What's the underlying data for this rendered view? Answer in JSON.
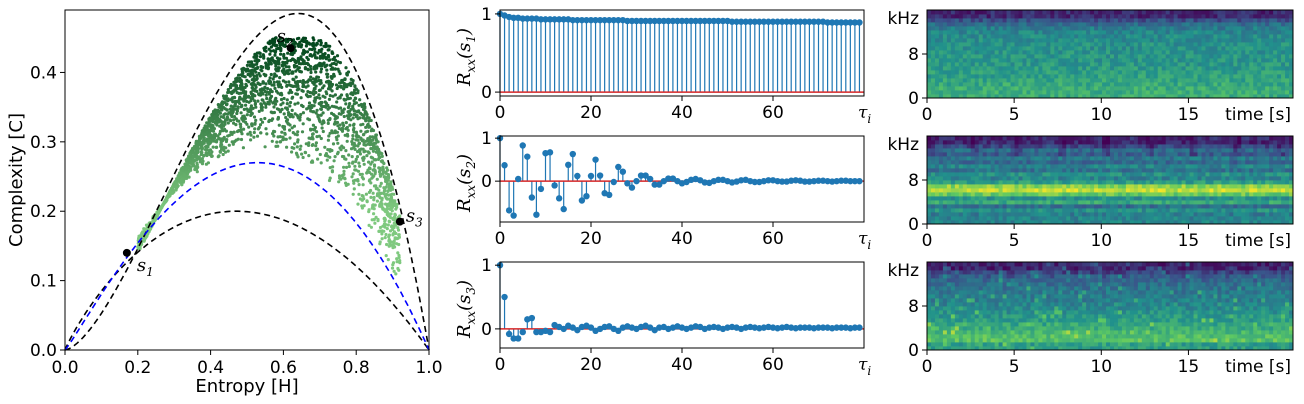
{
  "chart_data": [
    {
      "type": "scatter",
      "xlabel": "Entropy [H]",
      "ylabel": "Complexity [C]",
      "xlim": [
        0.0,
        1.0
      ],
      "ylim": [
        0.0,
        0.49
      ],
      "xticks": [
        "0.0",
        "0.2",
        "0.4",
        "0.6",
        "0.8",
        "1.0"
      ],
      "yticks": [
        "0.0",
        "0.1",
        "0.2",
        "0.3",
        "0.4"
      ],
      "bounds": {
        "upper_peak": [
          0.64,
          0.485
        ],
        "lower_peak": [
          0.47,
          0.2
        ],
        "blue_peak": [
          0.53,
          0.27
        ],
        "upper_color": "#000000",
        "lower_color": "#000000",
        "blue_color": "#0000ff"
      },
      "cloud": {
        "h_range": [
          0.2,
          0.92
        ],
        "c_range": [
          0.2,
          0.45
        ],
        "color_low": "#7fc97f",
        "color_high": "#00441b"
      },
      "labeled_points": [
        {
          "name": "s",
          "sub": "2",
          "H": 0.62,
          "C": 0.435
        },
        {
          "name": "s",
          "sub": "1",
          "H": 0.17,
          "C": 0.14
        },
        {
          "name": "s",
          "sub": "3",
          "H": 0.92,
          "C": 0.185
        }
      ]
    },
    {
      "type": "stem",
      "ylabel": "R",
      "ylabel_sub": "xx",
      "ylabel_arg": "(s",
      "ylabel_arg_sub": "1",
      "xlim": [
        0,
        80
      ],
      "ylim": [
        -0.05,
        1.05
      ],
      "xticks": [
        "0",
        "20",
        "40",
        "60"
      ],
      "xlabel_end": "τ",
      "xlabel_end_sub": "i",
      "yticks": [
        "0",
        "1"
      ],
      "color": "#1f77b4",
      "baseline_color": "#d62728",
      "values": [
        1.0,
        0.98,
        0.96,
        0.95,
        0.95,
        0.94,
        0.94,
        0.94,
        0.94,
        0.93,
        0.93,
        0.93,
        0.93,
        0.93,
        0.93,
        0.93,
        0.92,
        0.92,
        0.92,
        0.92,
        0.92,
        0.92,
        0.92,
        0.92,
        0.92,
        0.92,
        0.92,
        0.92,
        0.91,
        0.91,
        0.91,
        0.91,
        0.91,
        0.91,
        0.91,
        0.91,
        0.91,
        0.91,
        0.91,
        0.91,
        0.91,
        0.91,
        0.91,
        0.91,
        0.91,
        0.91,
        0.91,
        0.91,
        0.91,
        0.91,
        0.91,
        0.9,
        0.9,
        0.9,
        0.9,
        0.9,
        0.9,
        0.9,
        0.9,
        0.9,
        0.9,
        0.9,
        0.9,
        0.9,
        0.9,
        0.9,
        0.9,
        0.9,
        0.9,
        0.9,
        0.9,
        0.9,
        0.89,
        0.89,
        0.89,
        0.89,
        0.89,
        0.89,
        0.89,
        0.89
      ]
    },
    {
      "type": "stem",
      "ylabel": "R",
      "ylabel_sub": "xx",
      "ylabel_arg": "(s",
      "ylabel_arg_sub": "2",
      "xlim": [
        0,
        80
      ],
      "ylim": [
        -0.95,
        1.05
      ],
      "xticks": [
        "0",
        "20",
        "40",
        "60"
      ],
      "xlabel_end": "τ",
      "xlabel_end_sub": "i",
      "yticks": [
        "0",
        "1"
      ],
      "color": "#1f77b4",
      "baseline_color": "#d62728",
      "values": [
        1.0,
        0.37,
        -0.68,
        -0.8,
        0.05,
        0.83,
        0.57,
        -0.38,
        -0.78,
        -0.18,
        0.65,
        0.67,
        -0.1,
        -0.4,
        -0.65,
        0.38,
        0.63,
        0.12,
        -0.45,
        -0.35,
        0.12,
        0.5,
        0.13,
        -0.28,
        -0.32,
        -0.02,
        0.33,
        0.22,
        -0.05,
        -0.15,
        0.0,
        0.13,
        0.13,
        0.05,
        -0.08,
        -0.08,
        0.0,
        0.06,
        0.06,
        0.0,
        -0.05,
        -0.02,
        0.03,
        0.05,
        0.02,
        -0.03,
        -0.04,
        0.0,
        0.03,
        0.03,
        0.0,
        -0.03,
        -0.01,
        0.02,
        0.03,
        0.0,
        -0.02,
        -0.02,
        0.0,
        0.02,
        0.02,
        0.0,
        -0.01,
        -0.01,
        0.01,
        0.02,
        0.01,
        -0.01,
        -0.01,
        0.0,
        0.01,
        0.01,
        0.0,
        -0.01,
        0.0,
        0.01,
        0.01,
        0.0,
        0.0,
        0.0
      ]
    },
    {
      "type": "stem",
      "ylabel": "R",
      "ylabel_sub": "xx",
      "ylabel_arg": "(s",
      "ylabel_arg_sub": "3",
      "xlim": [
        0,
        80
      ],
      "ylim": [
        -0.3,
        1.05
      ],
      "xticks": [
        "0",
        "20",
        "40",
        "60"
      ],
      "xlabel_end": "τ",
      "xlabel_end_sub": "i",
      "yticks": [
        "0",
        "1"
      ],
      "color": "#1f77b4",
      "baseline_color": "#d62728",
      "values": [
        1.0,
        0.5,
        -0.08,
        -0.15,
        -0.15,
        -0.05,
        0.15,
        0.17,
        -0.05,
        -0.05,
        -0.03,
        -0.05,
        0.06,
        0.03,
        0.0,
        0.05,
        0.02,
        -0.02,
        0.03,
        0.05,
        0.02,
        -0.03,
        0.0,
        0.03,
        0.04,
        0.0,
        -0.03,
        0.02,
        0.04,
        0.02,
        0.0,
        0.03,
        0.05,
        0.02,
        -0.02,
        0.02,
        0.03,
        0.0,
        0.02,
        0.04,
        0.02,
        0.0,
        0.02,
        0.04,
        0.03,
        0.0,
        0.02,
        0.03,
        0.02,
        0.0,
        0.02,
        0.03,
        0.02,
        0.0,
        0.02,
        0.03,
        0.02,
        0.01,
        0.02,
        0.03,
        0.02,
        0.01,
        0.02,
        0.03,
        0.02,
        0.01,
        0.02,
        0.02,
        0.02,
        0.01,
        0.02,
        0.02,
        0.02,
        0.01,
        0.02,
        0.02,
        0.02,
        0.01,
        0.02,
        0.02
      ]
    },
    {
      "type": "heatmap",
      "xlabel_end": "time [s]",
      "ylabel_unit": "kHz",
      "xlim": [
        0,
        21
      ],
      "ylim_khz": [
        0,
        16
      ],
      "xticks": [
        "0",
        "5",
        "10",
        "15"
      ],
      "yticks": [
        "0",
        "8"
      ],
      "colormap": "viridis",
      "band_profile": [
        0.62,
        0.62,
        0.6,
        0.58,
        0.56,
        0.55,
        0.54,
        0.53,
        0.52,
        0.52,
        0.51,
        0.5,
        0.5,
        0.49,
        0.48,
        0.46,
        0.42,
        0.35,
        0.25,
        0.12
      ]
    },
    {
      "type": "heatmap",
      "xlabel_end": "time [s]",
      "ylabel_unit": "kHz",
      "xlim": [
        0,
        21
      ],
      "ylim_khz": [
        0,
        16
      ],
      "xticks": [
        "0",
        "5",
        "10",
        "15"
      ],
      "yticks": [
        "0",
        "8"
      ],
      "colormap": "viridis",
      "band_profile": [
        0.45,
        0.42,
        0.5,
        0.35,
        0.6,
        0.5,
        0.75,
        0.9,
        0.82,
        0.55,
        0.45,
        0.5,
        0.38,
        0.45,
        0.33,
        0.4,
        0.3,
        0.35,
        0.22,
        0.12
      ]
    },
    {
      "type": "heatmap",
      "xlabel_end": "time [s]",
      "ylabel_unit": "kHz",
      "xlim": [
        0,
        21
      ],
      "ylim_khz": [
        0,
        16
      ],
      "xticks": [
        "0",
        "5",
        "10",
        "15"
      ],
      "yticks": [
        "0",
        "8"
      ],
      "colormap": "viridis",
      "band_profile": [
        0.55,
        0.72,
        0.7,
        0.66,
        0.62,
        0.58,
        0.55,
        0.53,
        0.5,
        0.48,
        0.45,
        0.43,
        0.42,
        0.4,
        0.38,
        0.36,
        0.33,
        0.28,
        0.2,
        0.1
      ]
    }
  ]
}
